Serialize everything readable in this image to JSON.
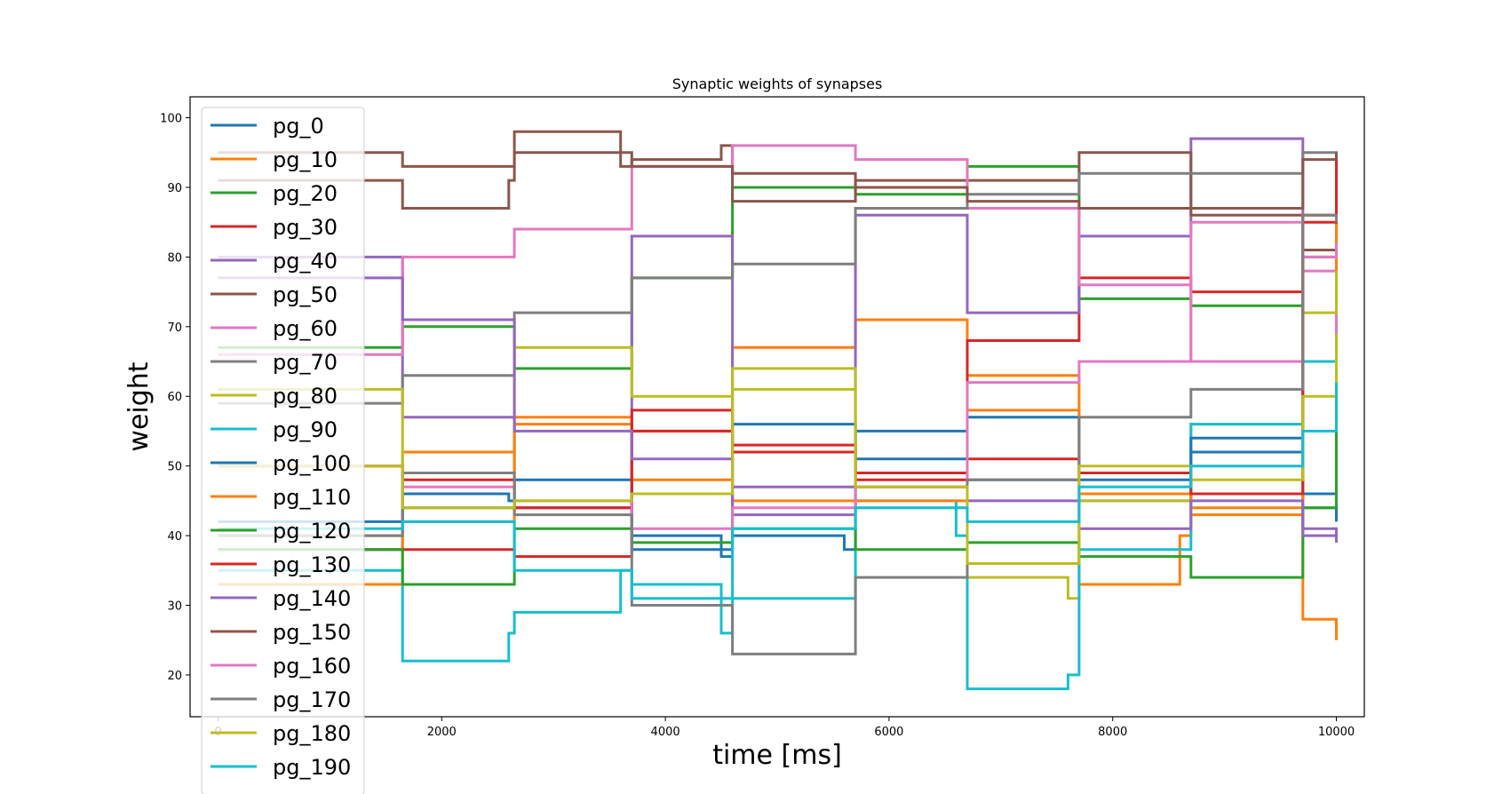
{
  "chart_data": {
    "type": "line",
    "title": "Synaptic weights of synapses",
    "xlabel": "time [ms]",
    "ylabel": "weight",
    "xlim": [
      -250,
      10250
    ],
    "ylim": [
      14,
      103
    ],
    "xticks": [
      0,
      2000,
      4000,
      6000,
      8000,
      10000
    ],
    "yticks": [
      20,
      30,
      40,
      50,
      60,
      70,
      80,
      90,
      100
    ],
    "grid": false,
    "legend_position": "upper-left",
    "series": [
      {
        "name": "pg_0",
        "color": "#1f77b4",
        "x": [
          0,
          1600,
          1650,
          2600,
          2650,
          3600,
          3700,
          4500,
          4600,
          5600,
          5700,
          6600,
          6700,
          7600,
          7700,
          8600,
          8700,
          9600,
          9700,
          10000
        ],
        "y": [
          38,
          38,
          46,
          45,
          44,
          44,
          40,
          37,
          40,
          38,
          55,
          55,
          48,
          48,
          45,
          45,
          52,
          52,
          44,
          42
        ]
      },
      {
        "name": "pg_10",
        "color": "#ff7f0e",
        "x": [
          0,
          1600,
          1650,
          2600,
          2650,
          3600,
          3700,
          4500,
          4600,
          5600,
          5700,
          6600,
          6700,
          7600,
          7700,
          8600,
          8700,
          9600,
          9700,
          10000
        ],
        "y": [
          33,
          33,
          52,
          52,
          57,
          57,
          55,
          55,
          67,
          67,
          71,
          71,
          63,
          63,
          33,
          40,
          43,
          43,
          28,
          25
        ]
      },
      {
        "name": "pg_20",
        "color": "#2ca02c",
        "x": [
          0,
          1600,
          1650,
          2600,
          2650,
          3600,
          3700,
          4500,
          4600,
          5600,
          5700,
          6600,
          6700,
          7600,
          7700,
          8600,
          8700,
          9600,
          9700,
          10000
        ],
        "y": [
          67,
          67,
          70,
          70,
          64,
          64,
          77,
          77,
          90,
          90,
          89,
          89,
          93,
          93,
          74,
          74,
          73,
          73,
          80,
          80
        ]
      },
      {
        "name": "pg_30",
        "color": "#d62728",
        "x": [
          0,
          1600,
          1650,
          2600,
          2650,
          3600,
          3700,
          4500,
          4600,
          5600,
          5700,
          6600,
          6700,
          7600,
          7700,
          8600,
          8700,
          9600,
          9700,
          10000
        ],
        "y": [
          38,
          38,
          38,
          38,
          37,
          37,
          55,
          55,
          52,
          52,
          48,
          48,
          68,
          68,
          77,
          77,
          75,
          75,
          86,
          95
        ]
      },
      {
        "name": "pg_40",
        "color": "#9467bd",
        "x": [
          0,
          1600,
          1650,
          2600,
          2650,
          3600,
          3700,
          4500,
          4600,
          5600,
          5700,
          6600,
          6700,
          7600,
          7700,
          8600,
          8700,
          9600,
          9700,
          10000
        ],
        "y": [
          80,
          80,
          57,
          57,
          44,
          44,
          83,
          83,
          47,
          47,
          86,
          86,
          72,
          72,
          83,
          83,
          97,
          97,
          41,
          39
        ]
      },
      {
        "name": "pg_50",
        "color": "#8c564b",
        "x": [
          0,
          1600,
          1650,
          2600,
          2650,
          3600,
          3700,
          4500,
          4600,
          5600,
          5700,
          6600,
          6700,
          7600,
          7700,
          8600,
          8700,
          9600,
          9700,
          10000
        ],
        "y": [
          91,
          91,
          87,
          91,
          98,
          93,
          94,
          96,
          88,
          88,
          91,
          91,
          91,
          91,
          95,
          95,
          86,
          86,
          81,
          95
        ]
      },
      {
        "name": "pg_60",
        "color": "#e377c2",
        "x": [
          0,
          1600,
          1650,
          2600,
          2650,
          3600,
          3700,
          4500,
          4600,
          5600,
          5700,
          6600,
          6700,
          7600,
          7700,
          8600,
          8700,
          9600,
          9700,
          10000
        ],
        "y": [
          66,
          66,
          80,
          80,
          84,
          84,
          93,
          93,
          96,
          96,
          94,
          94,
          87,
          87,
          76,
          76,
          65,
          65,
          78,
          68
        ]
      },
      {
        "name": "pg_70",
        "color": "#7f7f7f",
        "x": [
          0,
          1600,
          1650,
          2600,
          2650,
          3600,
          3700,
          4500,
          4600,
          5600,
          5700,
          6600,
          6700,
          7600,
          7700,
          8600,
          8700,
          9600,
          9700,
          10000
        ],
        "y": [
          59,
          59,
          63,
          63,
          72,
          72,
          77,
          77,
          79,
          79,
          87,
          87,
          89,
          89,
          92,
          92,
          92,
          92,
          95,
          91
        ]
      },
      {
        "name": "pg_80",
        "color": "#bcbd22",
        "x": [
          0,
          1600,
          1650,
          2600,
          2650,
          3600,
          3700,
          4500,
          4600,
          5600,
          5700,
          6600,
          6700,
          7600,
          7700,
          8600,
          8700,
          9600,
          9700,
          10000
        ],
        "y": [
          61,
          61,
          49,
          49,
          67,
          67,
          60,
          60,
          61,
          61,
          44,
          44,
          34,
          31,
          45,
          45,
          56,
          56,
          72,
          89
        ]
      },
      {
        "name": "pg_90",
        "color": "#17becf",
        "x": [
          0,
          1600,
          1650,
          2600,
          2650,
          3600,
          3700,
          4500,
          4600,
          5600,
          5700,
          6600,
          6700,
          7600,
          7700,
          8600,
          8700,
          9600,
          9700,
          10000
        ],
        "y": [
          35,
          35,
          22,
          26,
          29,
          35,
          33,
          26,
          31,
          31,
          45,
          40,
          18,
          20,
          38,
          38,
          56,
          56,
          65,
          62
        ]
      },
      {
        "name": "pg_100",
        "color": "#1f77b4",
        "x": [
          0,
          1600,
          1650,
          2600,
          2650,
          3600,
          3700,
          4500,
          4600,
          5600,
          5700,
          6600,
          6700,
          7600,
          7700,
          8600,
          8700,
          9600,
          9700,
          10000
        ],
        "y": [
          42,
          42,
          44,
          44,
          48,
          48,
          38,
          38,
          56,
          56,
          51,
          51,
          57,
          57,
          48,
          48,
          54,
          54,
          46,
          43
        ]
      },
      {
        "name": "pg_110",
        "color": "#ff7f0e",
        "x": [
          0,
          1600,
          1650,
          2600,
          2650,
          3600,
          3700,
          4500,
          4600,
          5600,
          5700,
          6600,
          6700,
          7600,
          7700,
          8600,
          8700,
          9600,
          9700,
          10000
        ],
        "y": [
          40,
          40,
          42,
          42,
          56,
          56,
          48,
          48,
          45,
          45,
          45,
          45,
          58,
          58,
          46,
          46,
          44,
          44,
          86,
          78
        ]
      },
      {
        "name": "pg_120",
        "color": "#2ca02c",
        "x": [
          0,
          1600,
          1650,
          2600,
          2650,
          3600,
          3700,
          4500,
          4600,
          5600,
          5700,
          6600,
          6700,
          7600,
          7700,
          8600,
          8700,
          9600,
          9700,
          10000
        ],
        "y": [
          38,
          38,
          33,
          33,
          41,
          41,
          39,
          39,
          41,
          41,
          38,
          38,
          39,
          39,
          37,
          37,
          34,
          34,
          44,
          56
        ]
      },
      {
        "name": "pg_130",
        "color": "#d62728",
        "x": [
          0,
          1600,
          1650,
          2600,
          2650,
          3600,
          3700,
          4500,
          4600,
          5600,
          5700,
          6600,
          6700,
          7600,
          7700,
          8600,
          8700,
          9600,
          9700,
          10000
        ],
        "y": [
          50,
          50,
          48,
          48,
          44,
          44,
          58,
          58,
          53,
          53,
          49,
          49,
          51,
          51,
          49,
          49,
          46,
          46,
          85,
          95
        ]
      },
      {
        "name": "pg_140",
        "color": "#9467bd",
        "x": [
          0,
          1600,
          1650,
          2600,
          2650,
          3600,
          3700,
          4500,
          4600,
          5600,
          5700,
          6600,
          6700,
          7600,
          7700,
          8600,
          8700,
          9600,
          9700,
          10000
        ],
        "y": [
          77,
          77,
          71,
          71,
          55,
          55,
          51,
          51,
          43,
          43,
          47,
          47,
          45,
          45,
          41,
          41,
          45,
          45,
          40,
          39
        ]
      },
      {
        "name": "pg_150",
        "color": "#8c564b",
        "x": [
          0,
          1600,
          1650,
          2600,
          2650,
          3600,
          3700,
          4500,
          4600,
          5600,
          5700,
          6600,
          6700,
          7600,
          7700,
          8600,
          8700,
          9600,
          9700,
          10000
        ],
        "y": [
          95,
          95,
          93,
          93,
          95,
          95,
          93,
          93,
          92,
          92,
          90,
          90,
          88,
          88,
          87,
          87,
          87,
          87,
          94,
          95
        ]
      },
      {
        "name": "pg_160",
        "color": "#e377c2",
        "x": [
          0,
          1600,
          1650,
          2600,
          2650,
          3600,
          3700,
          4500,
          4600,
          5600,
          5700,
          6600,
          6700,
          7600,
          7700,
          8600,
          8700,
          9600,
          9700,
          10000
        ],
        "y": [
          50,
          50,
          47,
          47,
          45,
          45,
          41,
          41,
          44,
          44,
          47,
          47,
          62,
          62,
          65,
          65,
          85,
          85,
          80,
          82
        ]
      },
      {
        "name": "pg_170",
        "color": "#7f7f7f",
        "x": [
          0,
          1600,
          1650,
          2600,
          2650,
          3600,
          3700,
          4500,
          4600,
          5600,
          5700,
          6600,
          6700,
          7600,
          7700,
          8600,
          8700,
          9600,
          9700,
          10000
        ],
        "y": [
          40,
          40,
          49,
          49,
          43,
          43,
          30,
          30,
          23,
          23,
          34,
          34,
          48,
          48,
          57,
          57,
          61,
          61,
          86,
          85
        ]
      },
      {
        "name": "pg_180",
        "color": "#bcbd22",
        "x": [
          0,
          1600,
          1650,
          2600,
          2650,
          3600,
          3700,
          4500,
          4600,
          5600,
          5700,
          6600,
          6700,
          7600,
          7700,
          8600,
          8700,
          9600,
          9700,
          10000
        ],
        "y": [
          50,
          50,
          44,
          44,
          45,
          45,
          46,
          46,
          64,
          64,
          47,
          47,
          36,
          36,
          50,
          50,
          48,
          48,
          60,
          69
        ]
      },
      {
        "name": "pg_190",
        "color": "#17becf",
        "x": [
          0,
          1600,
          1650,
          2600,
          2650,
          3600,
          3700,
          4500,
          4600,
          5600,
          5700,
          6600,
          6700,
          7600,
          7700,
          8600,
          8700,
          9600,
          9700,
          10000
        ],
        "y": [
          41,
          41,
          42,
          42,
          35,
          35,
          31,
          31,
          41,
          41,
          44,
          44,
          42,
          42,
          47,
          47,
          50,
          50,
          55,
          62
        ]
      }
    ]
  }
}
